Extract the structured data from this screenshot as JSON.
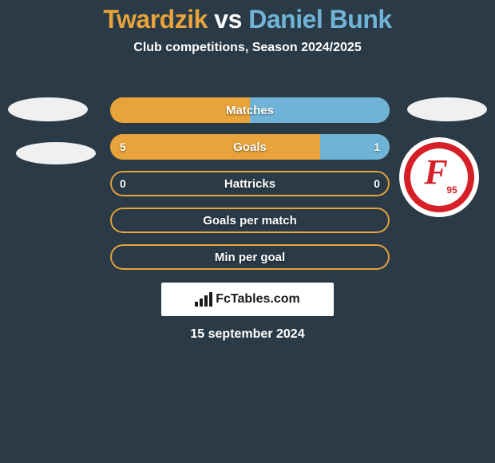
{
  "colors": {
    "background": "#2a3b47",
    "title_left": "#e8a33a",
    "title_mid": "#ffffff",
    "title_right": "#6fb4d6",
    "subtitle": "#ffffff",
    "row_border_orange": "#e8a33a",
    "row_border_blue": "#6fb4d6",
    "fill_orange": "#e8a33a",
    "fill_blue": "#6fb4d6",
    "avatar_bg": "#f0f0f0",
    "badge_red": "#d62027",
    "badge_white": "#ffffff"
  },
  "title": {
    "left": "Twardzik",
    "mid": "vs",
    "right": "Daniel Bunk"
  },
  "subtitle": "Club competitions, Season 2024/2025",
  "stats": [
    {
      "label": "Matches",
      "left_val": "",
      "right_val": "",
      "left_pct": 50,
      "right_pct": 50,
      "left_color": "#e8a33a",
      "right_color": "#6fb4d6",
      "border_color": "#e8a33a",
      "show_vals": false
    },
    {
      "label": "Goals",
      "left_val": "5",
      "right_val": "1",
      "left_pct": 75,
      "right_pct": 25,
      "left_color": "#e8a33a",
      "right_color": "#6fb4d6",
      "border_color": "#e8a33a",
      "show_vals": true
    },
    {
      "label": "Hattricks",
      "left_val": "0",
      "right_val": "0",
      "left_pct": 0,
      "right_pct": 0,
      "left_color": "#e8a33a",
      "right_color": "#6fb4d6",
      "border_color": "#e8a33a",
      "show_vals": true
    },
    {
      "label": "Goals per match",
      "left_val": "",
      "right_val": "",
      "left_pct": 0,
      "right_pct": 0,
      "left_color": "#e8a33a",
      "right_color": "#6fb4d6",
      "border_color": "#e8a33a",
      "show_vals": false
    },
    {
      "label": "Min per goal",
      "left_val": "",
      "right_val": "",
      "left_pct": 0,
      "right_pct": 0,
      "left_color": "#e8a33a",
      "right_color": "#6fb4d6",
      "border_color": "#e8a33a",
      "show_vals": false
    }
  ],
  "branding": {
    "icon": "chart",
    "text": "FcTables.com"
  },
  "date": "15 september 2024",
  "badge_right": {
    "letter": "F",
    "sub": "95"
  }
}
